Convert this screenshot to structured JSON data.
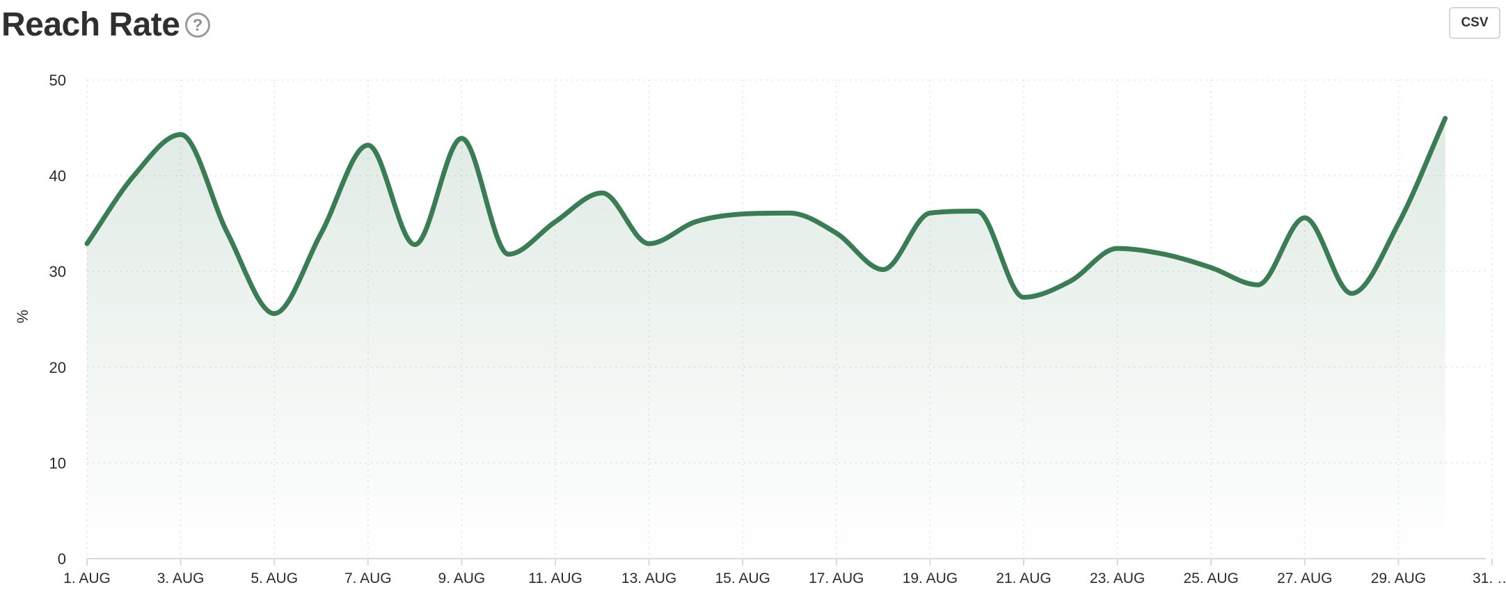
{
  "header": {
    "title": "Reach Rate",
    "help_icon_label": "?",
    "csv_button_label": "CSV"
  },
  "colors": {
    "line": "#3a7d55",
    "grid": "#e2e2e2",
    "axis": "#d9d9d9",
    "text": "#2b2b2b"
  },
  "chart_data": {
    "type": "area",
    "ylabel": "%",
    "ylim": [
      0,
      50
    ],
    "yticks": [
      0,
      10,
      20,
      30,
      40,
      50
    ],
    "x_tick_labels": [
      "1. AUG",
      "3. AUG",
      "5. AUG",
      "7. AUG",
      "9. AUG",
      "11. AUG",
      "13. AUG",
      "15. AUG",
      "17. AUG",
      "19. AUG",
      "21. AUG",
      "23. AUG",
      "25. AUG",
      "27. AUG",
      "29. AUG",
      "31. …"
    ],
    "grid": true,
    "series": [
      {
        "x": [
          "1. Aug",
          "2. Aug",
          "3. Aug",
          "4. Aug",
          "5. Aug",
          "6. Aug",
          "7. Aug",
          "8. Aug",
          "9. Aug",
          "10. Aug",
          "11. Aug",
          "12. Aug",
          "13. Aug",
          "14. Aug",
          "15. Aug",
          "16. Aug",
          "17. Aug",
          "18. Aug",
          "19. Aug",
          "20. Aug",
          "21. Aug",
          "22. Aug",
          "23. Aug",
          "24. Aug",
          "25. Aug",
          "26. Aug",
          "27. Aug",
          "28. Aug",
          "29. Aug",
          "30. Aug"
        ],
        "values": [
          32.9,
          40.0,
          44.3,
          34.0,
          25.6,
          34.0,
          43.2,
          32.8,
          43.9,
          31.8,
          35.2,
          38.2,
          32.9,
          35.2,
          36.0,
          36.1,
          34.0,
          30.2,
          36.1,
          36.3,
          27.3,
          29.0,
          32.4,
          31.8,
          30.4,
          28.6,
          35.6,
          27.7,
          35.0,
          46.0
        ]
      }
    ]
  }
}
